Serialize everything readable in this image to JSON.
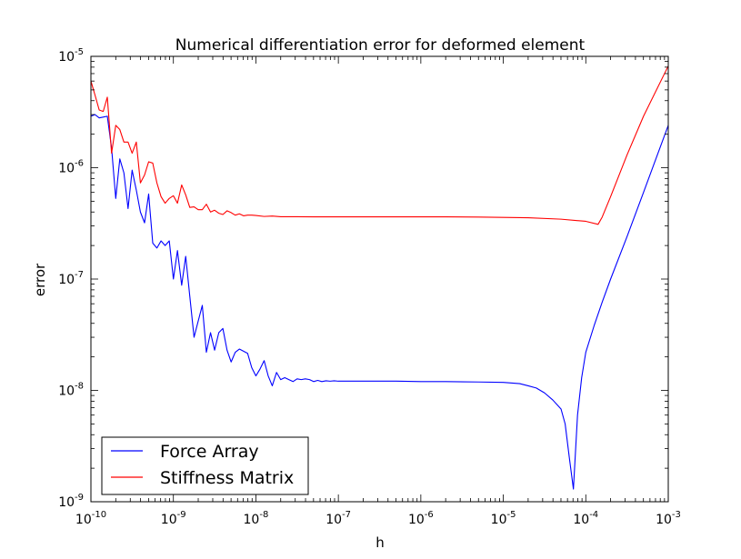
{
  "chart_data": {
    "type": "line",
    "title": "Numerical differentiation error for deformed element",
    "xlabel": "h",
    "ylabel": "error",
    "xscale": "log",
    "yscale": "log",
    "xlim": [
      1e-10,
      0.001
    ],
    "ylim": [
      1e-09,
      1e-05
    ],
    "grid": false,
    "legend_position": "lower-left",
    "x_ticks": [
      {
        "value": 1e-10,
        "base": "10",
        "exp": "-10"
      },
      {
        "value": 1e-09,
        "base": "10",
        "exp": "-9"
      },
      {
        "value": 1e-08,
        "base": "10",
        "exp": "-8"
      },
      {
        "value": 1e-07,
        "base": "10",
        "exp": "-7"
      },
      {
        "value": 1e-06,
        "base": "10",
        "exp": "-6"
      },
      {
        "value": 1e-05,
        "base": "10",
        "exp": "-5"
      },
      {
        "value": 0.0001,
        "base": "10",
        "exp": "-4"
      },
      {
        "value": 0.001,
        "base": "10",
        "exp": "-3"
      }
    ],
    "y_ticks": [
      {
        "value": 1e-09,
        "base": "10",
        "exp": "-9"
      },
      {
        "value": 1e-08,
        "base": "10",
        "exp": "-8"
      },
      {
        "value": 1e-07,
        "base": "10",
        "exp": "-7"
      },
      {
        "value": 1e-06,
        "base": "10",
        "exp": "-6"
      },
      {
        "value": 1e-05,
        "base": "10",
        "exp": "-5"
      }
    ],
    "series": [
      {
        "name": "Force Array",
        "color": "#0000ff",
        "points": [
          [
            1e-10,
            2.9e-06
          ],
          [
            1.12e-10,
            3e-06
          ],
          [
            1.26e-10,
            2.8e-06
          ],
          [
            1.41e-10,
            2.85e-06
          ],
          [
            1.58e-10,
            2.9e-06
          ],
          [
            1.78e-10,
            1.5e-06
          ],
          [
            2e-10,
            5.3e-07
          ],
          [
            2.24e-10,
            1.2e-06
          ],
          [
            2.51e-10,
            9e-07
          ],
          [
            2.82e-10,
            4.3e-07
          ],
          [
            3.16e-10,
            9.5e-07
          ],
          [
            3.55e-10,
            6.3e-07
          ],
          [
            3.98e-10,
            4e-07
          ],
          [
            4.47e-10,
            3.2e-07
          ],
          [
            5.01e-10,
            5.8e-07
          ],
          [
            5.62e-10,
            2.1e-07
          ],
          [
            6.31e-10,
            1.9e-07
          ],
          [
            7.08e-10,
            2.2e-07
          ],
          [
            7.94e-10,
            2e-07
          ],
          [
            8.91e-10,
            2.2e-07
          ],
          [
            1e-09,
            1e-07
          ],
          [
            1.12e-09,
            1.8e-07
          ],
          [
            1.26e-09,
            8.8e-08
          ],
          [
            1.41e-09,
            1.6e-07
          ],
          [
            1.58e-09,
            7e-08
          ],
          [
            1.78e-09,
            3e-08
          ],
          [
            2e-09,
            4.2e-08
          ],
          [
            2.24e-09,
            5.8e-08
          ],
          [
            2.51e-09,
            2.2e-08
          ],
          [
            2.82e-09,
            3.3e-08
          ],
          [
            3.16e-09,
            2.3e-08
          ],
          [
            3.55e-09,
            3.3e-08
          ],
          [
            3.98e-09,
            3.6e-08
          ],
          [
            4.47e-09,
            2.3e-08
          ],
          [
            5.01e-09,
            1.8e-08
          ],
          [
            5.62e-09,
            2.2e-08
          ],
          [
            6.31e-09,
            2.35e-08
          ],
          [
            7.08e-09,
            2.25e-08
          ],
          [
            7.94e-09,
            2.15e-08
          ],
          [
            8.91e-09,
            1.6e-08
          ],
          [
            1e-08,
            1.35e-08
          ],
          [
            1.12e-08,
            1.55e-08
          ],
          [
            1.26e-08,
            1.85e-08
          ],
          [
            1.41e-08,
            1.35e-08
          ],
          [
            1.58e-08,
            1.1e-08
          ],
          [
            1.78e-08,
            1.45e-08
          ],
          [
            2e-08,
            1.25e-08
          ],
          [
            2.24e-08,
            1.3e-08
          ],
          [
            2.51e-08,
            1.25e-08
          ],
          [
            2.82e-08,
            1.2e-08
          ],
          [
            3.16e-08,
            1.27e-08
          ],
          [
            3.55e-08,
            1.25e-08
          ],
          [
            3.98e-08,
            1.27e-08
          ],
          [
            4.47e-08,
            1.25e-08
          ],
          [
            5.01e-08,
            1.2e-08
          ],
          [
            5.62e-08,
            1.23e-08
          ],
          [
            6.31e-08,
            1.2e-08
          ],
          [
            7.08e-08,
            1.22e-08
          ],
          [
            7.94e-08,
            1.21e-08
          ],
          [
            8.91e-08,
            1.22e-08
          ],
          [
            1e-07,
            1.21e-08
          ],
          [
            2e-07,
            1.21e-08
          ],
          [
            5e-07,
            1.21e-08
          ],
          [
            1e-06,
            1.2e-08
          ],
          [
            2e-06,
            1.2e-08
          ],
          [
            5e-06,
            1.19e-08
          ],
          [
            1e-05,
            1.18e-08
          ],
          [
            1.58e-05,
            1.15e-08
          ],
          [
            2e-05,
            1.1e-08
          ],
          [
            2.51e-05,
            1.05e-08
          ],
          [
            3.16e-05,
            9.5e-09
          ],
          [
            3.98e-05,
            8.2e-09
          ],
          [
            5.01e-05,
            6.8e-09
          ],
          [
            5.62e-05,
            5e-09
          ],
          [
            6.31e-05,
            2.5e-09
          ],
          [
            7.08e-05,
            1.3e-09
          ],
          [
            7.94e-05,
            6e-09
          ],
          [
            8.91e-05,
            1.3e-08
          ],
          [
            0.0001,
            2.2e-08
          ],
          [
            0.000126,
            3.8e-08
          ],
          [
            0.000158,
            6.2e-08
          ],
          [
            0.0002,
            1e-07
          ],
          [
            0.000316,
            2.4e-07
          ],
          [
            0.000501,
            6e-07
          ],
          [
            0.001,
            2.4e-06
          ]
        ]
      },
      {
        "name": "Stiffness Matrix",
        "color": "#ff0000",
        "points": [
          [
            1e-10,
            6e-06
          ],
          [
            1.12e-10,
            4.5e-06
          ],
          [
            1.26e-10,
            3.3e-06
          ],
          [
            1.41e-10,
            3.2e-06
          ],
          [
            1.58e-10,
            4.3e-06
          ],
          [
            1.78e-10,
            1.35e-06
          ],
          [
            2e-10,
            2.4e-06
          ],
          [
            2.24e-10,
            2.2e-06
          ],
          [
            2.51e-10,
            1.7e-06
          ],
          [
            2.82e-10,
            1.7e-06
          ],
          [
            3.16e-10,
            1.35e-06
          ],
          [
            3.55e-10,
            1.7e-06
          ],
          [
            3.98e-10,
            7.3e-07
          ],
          [
            4.47e-10,
            8.6e-07
          ],
          [
            5.01e-10,
            1.13e-06
          ],
          [
            5.62e-10,
            1.1e-06
          ],
          [
            6.31e-10,
            7.3e-07
          ],
          [
            7.08e-10,
            5.5e-07
          ],
          [
            7.94e-10,
            4.8e-07
          ],
          [
            8.91e-10,
            5.3e-07
          ],
          [
            1e-09,
            5.6e-07
          ],
          [
            1.12e-09,
            4.8e-07
          ],
          [
            1.26e-09,
            7e-07
          ],
          [
            1.41e-09,
            5.7e-07
          ],
          [
            1.58e-09,
            4.4e-07
          ],
          [
            1.78e-09,
            4.45e-07
          ],
          [
            2e-09,
            4.2e-07
          ],
          [
            2.24e-09,
            4.2e-07
          ],
          [
            2.51e-09,
            4.7e-07
          ],
          [
            2.82e-09,
            4e-07
          ],
          [
            3.16e-09,
            4.15e-07
          ],
          [
            3.55e-09,
            3.9e-07
          ],
          [
            3.98e-09,
            3.8e-07
          ],
          [
            4.47e-09,
            4.1e-07
          ],
          [
            5.01e-09,
            3.95e-07
          ],
          [
            5.62e-09,
            3.75e-07
          ],
          [
            6.31e-09,
            3.85e-07
          ],
          [
            7.08e-09,
            3.7e-07
          ],
          [
            7.94e-09,
            3.75e-07
          ],
          [
            8.91e-09,
            3.75e-07
          ],
          [
            1e-08,
            3.72e-07
          ],
          [
            1.26e-08,
            3.65e-07
          ],
          [
            1.58e-08,
            3.68e-07
          ],
          [
            2e-08,
            3.63e-07
          ],
          [
            3.16e-08,
            3.63e-07
          ],
          [
            5.01e-08,
            3.62e-07
          ],
          [
            1e-07,
            3.62e-07
          ],
          [
            2e-07,
            3.62e-07
          ],
          [
            5e-07,
            3.62e-07
          ],
          [
            1e-06,
            3.62e-07
          ],
          [
            2e-06,
            3.62e-07
          ],
          [
            5e-06,
            3.6e-07
          ],
          [
            1e-05,
            3.58e-07
          ],
          [
            2e-05,
            3.55e-07
          ],
          [
            5e-05,
            3.45e-07
          ],
          [
            0.0001,
            3.3e-07
          ],
          [
            0.000141,
            3.1e-07
          ],
          [
            0.000158,
            3.6e-07
          ],
          [
            0.0002,
            5.5e-07
          ],
          [
            0.000316,
            1.3e-06
          ],
          [
            0.000501,
            2.9e-06
          ],
          [
            0.001,
            8.2e-06
          ]
        ]
      }
    ]
  }
}
